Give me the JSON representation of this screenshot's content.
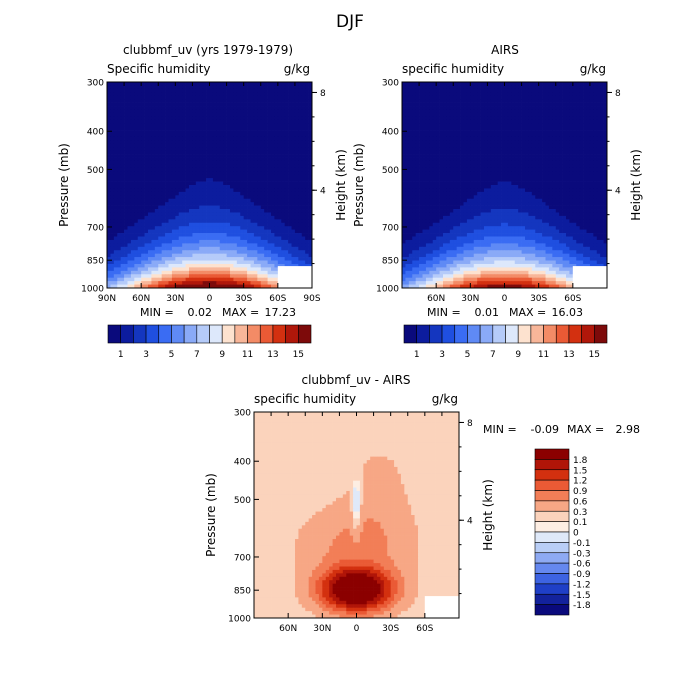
{
  "figure": {
    "title": "DJF"
  },
  "chart_data": [
    {
      "type": "heatmap",
      "title": "clubbmf_uv (yrs 1979-1979)",
      "subtitle_left": "Specific humidity",
      "subtitle_right": "g/kg",
      "ylabel": "Pressure (mb)",
      "ylabel_right": "Height (km)",
      "y_ticks": [
        "300",
        "400",
        "500",
        "700",
        "850",
        "1000"
      ],
      "y_ticks_right": [
        "8",
        "4"
      ],
      "x_ticks": [
        "90N",
        "60N",
        "30N",
        "0",
        "30S",
        "60S",
        "90S"
      ],
      "stats": {
        "min_label": "MIN =",
        "min": "0.02",
        "max_label": "MAX =",
        "max": "17.23"
      },
      "field": {
        "peak": 17.23,
        "background": 0.02,
        "center_lat": 0,
        "top_pressure": 400
      },
      "colorbar": {
        "orientation": "horizontal",
        "labels": [
          "1",
          "3",
          "5",
          "7",
          "9",
          "11",
          "13",
          "15"
        ],
        "colors": [
          "#0a0a7c",
          "#0c1c9e",
          "#1436bf",
          "#1f4fe0",
          "#3a6cf3",
          "#5f8af5",
          "#8aaaf7",
          "#b5cbf9",
          "#dde8fb",
          "#fde2cf",
          "#f8b699",
          "#f38b66",
          "#ea5a35",
          "#d33010",
          "#b0170a",
          "#7d0a0a"
        ]
      }
    },
    {
      "type": "heatmap",
      "title": "AIRS",
      "subtitle_left": "specific humidity",
      "subtitle_right": "g/kg",
      "ylabel": "Pressure (mb)",
      "ylabel_right": "Height (km)",
      "y_ticks": [
        "300",
        "400",
        "500",
        "700",
        "850",
        "1000"
      ],
      "y_ticks_right": [
        "8",
        "4"
      ],
      "x_ticks": [
        "60N",
        "30N",
        "0",
        "30S",
        "60S"
      ],
      "stats": {
        "min_label": "MIN =",
        "min": "0.01",
        "max_label": "MAX =",
        "max": "16.03"
      },
      "field": {
        "peak": 16.03,
        "background": 0.01,
        "center_lat": 0,
        "top_pressure": 410
      },
      "colorbar": {
        "orientation": "horizontal",
        "labels": [
          "1",
          "3",
          "5",
          "7",
          "9",
          "11",
          "13",
          "15"
        ],
        "colors": [
          "#0a0a7c",
          "#0c1c9e",
          "#1436bf",
          "#1f4fe0",
          "#3a6cf3",
          "#5f8af5",
          "#8aaaf7",
          "#b5cbf9",
          "#dde8fb",
          "#fde2cf",
          "#f8b699",
          "#f38b66",
          "#ea5a35",
          "#d33010",
          "#b0170a",
          "#7d0a0a"
        ]
      }
    },
    {
      "type": "heatmap",
      "title": "clubbmf_uv - AIRS",
      "subtitle_left": "specific humidity",
      "subtitle_right": "g/kg",
      "ylabel": "Pressure (mb)",
      "ylabel_right": "Height (km)",
      "y_ticks": [
        "300",
        "400",
        "500",
        "700",
        "850",
        "1000"
      ],
      "y_ticks_right": [
        "8",
        "4"
      ],
      "x_ticks": [
        "60N",
        "30N",
        "0",
        "30S",
        "60S"
      ],
      "stats": {
        "min_label": "MIN =",
        "min": "-0.09",
        "max_label": "MAX =",
        "max": "2.98"
      },
      "field": {
        "peak": 2.98,
        "min": -0.09,
        "core_pressure": 850,
        "core_lats": [
          -20,
          20
        ]
      },
      "colorbar": {
        "orientation": "vertical",
        "labels": [
          "1.8",
          "1.5",
          "1.2",
          "0.9",
          "0.6",
          "0.3",
          "0.1",
          "0",
          "-0.1",
          "-0.3",
          "-0.6",
          "-0.9",
          "-1.2",
          "-1.5",
          "-1.8"
        ],
        "colors": [
          "#8b0000",
          "#b01508",
          "#d3300f",
          "#ea5a35",
          "#f27e57",
          "#f7a785",
          "#fbd3bc",
          "#fdeee3",
          "#dfe9f9",
          "#b9cef6",
          "#8eaaf3",
          "#6588ef",
          "#3d63e2",
          "#1f3fc7",
          "#13229c",
          "#0a0a7c"
        ]
      }
    }
  ]
}
